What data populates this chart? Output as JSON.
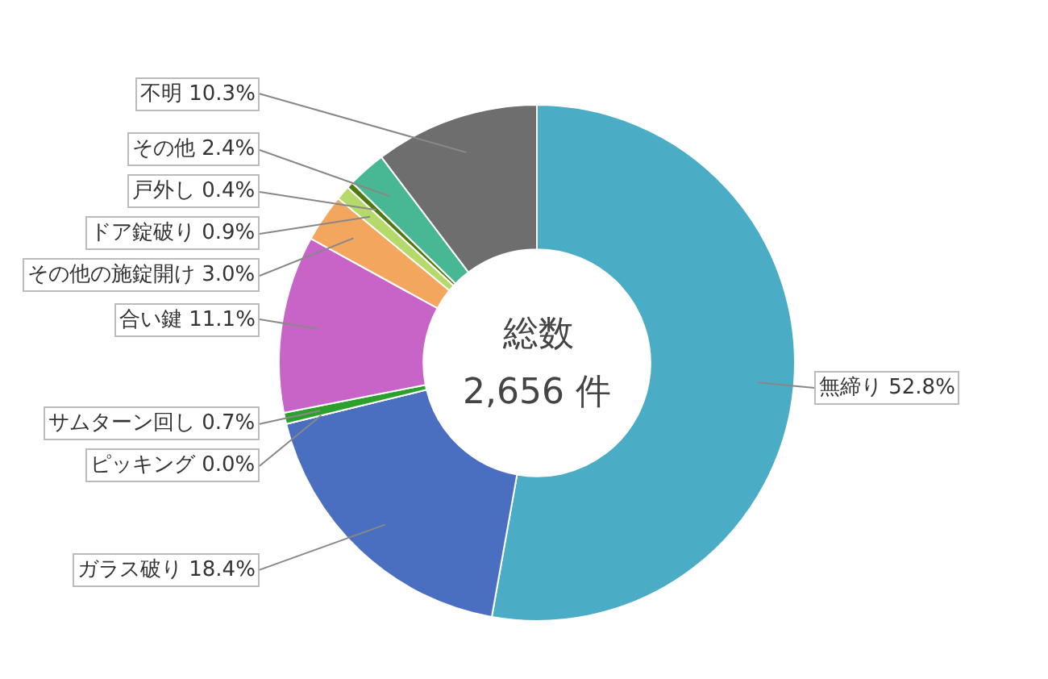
{
  "chart_data": {
    "type": "donut",
    "categories": [
      "無締り",
      "ガラス破り",
      "ピッキング",
      "サムターン回し",
      "合い鍵",
      "その他の施錠開け",
      "ドア錠破り",
      "戸外し",
      "その他",
      "不明"
    ],
    "values": [
      52.8,
      18.4,
      0.0,
      0.7,
      11.1,
      3.0,
      0.9,
      0.4,
      2.4,
      10.3
    ],
    "value_labels": [
      "52.8%",
      "18.4%",
      "0.0%",
      "0.7%",
      "11.1%",
      "3.0%",
      "0.9%",
      "0.4%",
      "2.4%",
      "10.3%"
    ],
    "colors": [
      "#4bacc6",
      "#4a6fc0",
      "#9bbb59",
      "#2ca02c",
      "#c864c8",
      "#f3a65e",
      "#b5d96a",
      "#4f7a10",
      "#48b894",
      "#6e6e6e"
    ],
    "annotations": [
      "総数",
      "2,656 件"
    ]
  }
}
